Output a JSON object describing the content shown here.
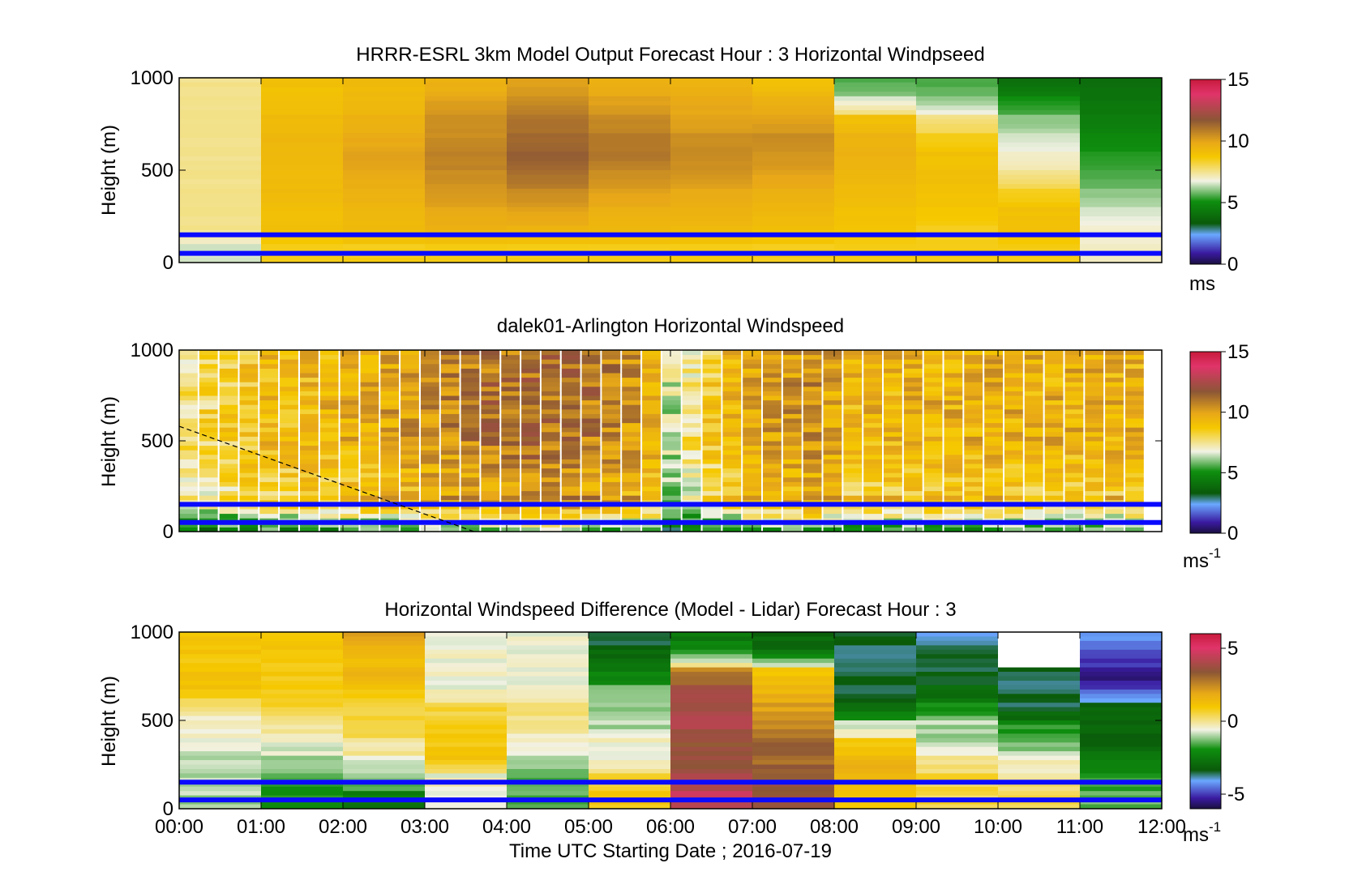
{
  "figure": {
    "xlabel": "Time UTC  Starting Date ; 2016-07-19",
    "xticks": [
      "00:00",
      "01:00",
      "02:00",
      "03:00",
      "04:00",
      "05:00",
      "06:00",
      "07:00",
      "08:00",
      "09:00",
      "10:00",
      "11:00",
      "12:00"
    ],
    "xlim": [
      0,
      12
    ]
  },
  "chart_data": [
    {
      "type": "heatmap",
      "title": "HRRR-ESRL 3km Model Output   Forecast Hour : 3 Horizontal Windpseed",
      "ylabel": "Height (m)",
      "ylim": [
        0,
        1000
      ],
      "yticks": [
        0,
        500,
        1000
      ],
      "heights": [
        1000,
        900,
        800,
        700,
        600,
        500,
        400,
        300,
        200,
        100,
        0
      ],
      "x": [
        0,
        1,
        2,
        3,
        4,
        5,
        6,
        7,
        8,
        9,
        10,
        11
      ],
      "values": [
        [
          7.5,
          9,
          9.2,
          9.5,
          10,
          9.5,
          9.5,
          9,
          5.5,
          5.5,
          4,
          4
        ],
        [
          7.5,
          9,
          9.3,
          10,
          10.5,
          10,
          9.8,
          9.5,
          6.5,
          6,
          5,
          4.2
        ],
        [
          7.5,
          9.2,
          9.5,
          10.5,
          11,
          10.5,
          10,
          10,
          9,
          7.5,
          6,
          4.5
        ],
        [
          7.5,
          9.3,
          9.8,
          10.5,
          11.3,
          11,
          10.5,
          10.5,
          9.5,
          8.5,
          6.5,
          4.8
        ],
        [
          7.5,
          9.3,
          10,
          10.8,
          11.5,
          11,
          10.5,
          10.3,
          9.5,
          9,
          7,
          5.2
        ],
        [
          7.5,
          9.2,
          9.8,
          10.5,
          11.2,
          10.5,
          10.3,
          10,
          9.3,
          9,
          7.5,
          5.5
        ],
        [
          7.5,
          9.2,
          9.6,
          10.2,
          10.5,
          10,
          9.8,
          9.6,
          9.2,
          9,
          8.5,
          6
        ],
        [
          7.5,
          9,
          9.3,
          9.8,
          10,
          9.6,
          9.5,
          9.3,
          9,
          8.8,
          9,
          6.5
        ],
        [
          7.5,
          9,
          9.2,
          9.5,
          9.5,
          9.3,
          9.2,
          9,
          8.8,
          8.5,
          9,
          7
        ],
        [
          6.5,
          8.5,
          8.5,
          8.5,
          8.5,
          8.5,
          8.5,
          8.5,
          8.5,
          8.5,
          8.5,
          7
        ]
      ],
      "hlines": [
        150,
        50
      ],
      "clim": [
        0,
        15
      ],
      "cbar_ticks": [
        0,
        5,
        10,
        15
      ],
      "cbar_unit": "ms",
      "cbar_unit_sup": ""
    },
    {
      "type": "heatmap",
      "title": "dalek01-Arlington  Horizontal Windspeed",
      "ylabel": "Height (m)",
      "ylim": [
        0,
        1000
      ],
      "yticks": [
        0,
        500,
        1000
      ],
      "x": [
        0,
        11.8
      ],
      "cols": 48,
      "rows": 40,
      "profile": [
        [
          0,
          7.5
        ],
        [
          1,
          9
        ],
        [
          2,
          9.5
        ],
        [
          3,
          10.3
        ],
        [
          3.8,
          11
        ],
        [
          4.5,
          11.2
        ],
        [
          5.2,
          10.8
        ],
        [
          5.8,
          9.8
        ],
        [
          6,
          6.5
        ],
        [
          6.5,
          8.5
        ],
        [
          7,
          9.8
        ],
        [
          7.8,
          10.5
        ],
        [
          8.2,
          9.3
        ],
        [
          9,
          9.5
        ],
        [
          10,
          9.6
        ],
        [
          11,
          9.5
        ],
        [
          11.8,
          9.5
        ]
      ],
      "dashed_line": [
        [
          0,
          580
        ],
        [
          3.6,
          0
        ]
      ],
      "hlines": [
        150,
        50
      ],
      "clim": [
        0,
        15
      ],
      "cbar_ticks": [
        0,
        5,
        10,
        15
      ],
      "cbar_unit": "ms",
      "cbar_unit_sup": "-1"
    },
    {
      "type": "heatmap",
      "title": "Horizontal Windspeed Difference (Model - Lidar) Forecast Hour : 3",
      "ylabel": "Height (m)",
      "ylim": [
        0,
        1000
      ],
      "yticks": [
        0,
        500,
        1000
      ],
      "heights": [
        1000,
        900,
        800,
        700,
        600,
        500,
        400,
        300,
        200,
        100,
        0
      ],
      "x": [
        0,
        1,
        2,
        3,
        4,
        5,
        6,
        7,
        8,
        9,
        10,
        11
      ],
      "values": [
        [
          1,
          1,
          2,
          -0.5,
          -0.5,
          -3.5,
          -2.5,
          -3,
          -3.5,
          -4,
          null,
          -4
        ],
        [
          1,
          1,
          1.5,
          -0.5,
          -0.5,
          -3,
          -2,
          -2.5,
          -3.5,
          -3.5,
          null,
          -5
        ],
        [
          1,
          1,
          1.5,
          -0.5,
          -0.5,
          -2.5,
          2.5,
          1,
          -3.5,
          -3.5,
          -3.5,
          -5.5
        ],
        [
          1,
          1,
          1,
          -0.5,
          -0.5,
          -1.5,
          3.5,
          1.5,
          -3.5,
          -3,
          -3.5,
          -5
        ],
        [
          0,
          0.5,
          0.5,
          0.5,
          0,
          -1,
          4,
          2,
          -3,
          -2,
          -3.5,
          -3
        ],
        [
          -0.5,
          0,
          0.5,
          1,
          0,
          -1,
          4,
          2.5,
          -1,
          -1,
          -2,
          -3
        ],
        [
          -0.5,
          -0.5,
          0,
          1,
          -0.5,
          -0.5,
          3.5,
          3,
          1,
          -1,
          -1.5,
          -3
        ],
        [
          -1,
          -1,
          -0.5,
          1,
          -1,
          -0.5,
          3.5,
          3,
          1.5,
          0,
          -0.5,
          -2.5
        ],
        [
          -1,
          -1.5,
          -1,
          -0.5,
          -1.5,
          0.5,
          4,
          3.5,
          1.5,
          0.5,
          0,
          -2
        ],
        [
          -1,
          -2,
          -2.5,
          -0.5,
          -1.5,
          1,
          4.5,
          3.5,
          1,
          0.5,
          0.5,
          -1.5
        ]
      ],
      "hlines": [
        150,
        50
      ],
      "clim": [
        -6,
        6
      ],
      "cbar_ticks": [
        -5,
        0,
        5
      ],
      "cbar_unit": "ms",
      "cbar_unit_sup": "-1"
    }
  ]
}
